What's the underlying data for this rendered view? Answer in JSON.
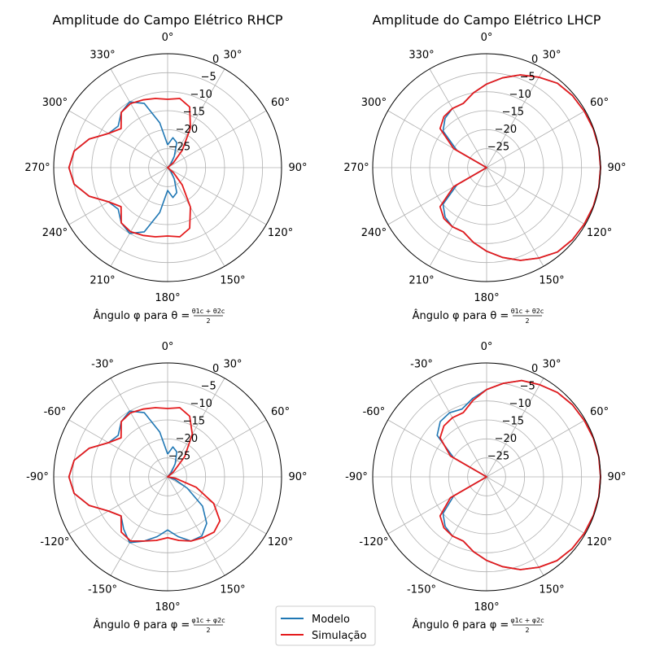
{
  "chart_data": [
    {
      "type": "polar-line",
      "title": "Amplitude do Campo Elétrico RHCP",
      "xlabel": {
        "prefix": "Ângulo φ para θ =",
        "num": "θ1c + θ2c",
        "den": "2"
      },
      "angle_tick_labels": [
        "0°",
        "30°",
        "60°",
        "90°",
        "120°",
        "150°",
        "180°",
        "210°",
        "240°",
        "270°",
        "300°",
        "330°"
      ],
      "radial_tick_labels": [
        "0",
        "−5",
        "−10",
        "−15",
        "−20",
        "−25"
      ],
      "radial_ticks": [
        0,
        -5,
        -10,
        -15,
        -20,
        -25
      ],
      "rlim": [
        -30,
        0
      ],
      "grid": true,
      "series": [
        {
          "name": "Modelo",
          "color": "#1f77b4",
          "theta": [
            0,
            10,
            20,
            30,
            40,
            50,
            60,
            70,
            80,
            90,
            100,
            110,
            120,
            130,
            140,
            150,
            160,
            170,
            180,
            190,
            200,
            210,
            220,
            230,
            240,
            250,
            260,
            270,
            280,
            290,
            300,
            310,
            320,
            330,
            340,
            350,
            360
          ],
          "values": [
            -24,
            -22,
            -23,
            -26.5,
            -28.5,
            -29.5,
            -30,
            -30,
            -30,
            -30,
            -30,
            -30,
            -30,
            -29.5,
            -28.5,
            -26.5,
            -23,
            -22,
            -24,
            -18,
            -12,
            -10,
            -11,
            -13,
            -12,
            -8,
            -5,
            -4,
            -5,
            -8,
            -12,
            -13,
            -11,
            -10,
            -12,
            -18,
            -24
          ]
        },
        {
          "name": "Simulação",
          "color": "#e41a1c",
          "theta": [
            0,
            10,
            20,
            30,
            40,
            50,
            60,
            70,
            80,
            90,
            100,
            110,
            120,
            130,
            140,
            150,
            160,
            170,
            180,
            190,
            200,
            210,
            220,
            230,
            240,
            250,
            260,
            270,
            280,
            290,
            300,
            310,
            320,
            330,
            340,
            350,
            360
          ],
          "values": [
            -12,
            -11.5,
            -13,
            -18,
            -24,
            -28,
            -30,
            -30,
            -30,
            -30,
            -30,
            -30,
            -30,
            -28,
            -24,
            -18,
            -13,
            -11.5,
            -12,
            -11.5,
            -11,
            -10.5,
            -11,
            -14,
            -12,
            -8,
            -5,
            -4,
            -5,
            -8,
            -12,
            -14,
            -11,
            -10.5,
            -11,
            -11.5,
            -12
          ]
        }
      ]
    },
    {
      "type": "polar-line",
      "title": "Amplitude do Campo Elétrico LHCP",
      "xlabel": {
        "prefix": "Ângulo φ para θ =",
        "num": "θ1c + θ2c",
        "den": "2"
      },
      "angle_tick_labels": [
        "0°",
        "30°",
        "60°",
        "90°",
        "120°",
        "150°",
        "180°",
        "210°",
        "240°",
        "270°",
        "300°",
        "330°"
      ],
      "radial_tick_labels": [
        "0",
        "−5",
        "−10",
        "−15",
        "−20",
        "−25"
      ],
      "radial_ticks": [
        0,
        -5,
        -10,
        -15,
        -20,
        -25
      ],
      "rlim": [
        -30,
        0
      ],
      "grid": true,
      "series": [
        {
          "name": "Modelo",
          "color": "#1f77b4",
          "theta": [
            0,
            10,
            20,
            30,
            40,
            50,
            60,
            70,
            80,
            90,
            100,
            110,
            120,
            130,
            140,
            150,
            160,
            170,
            180,
            190,
            200,
            210,
            220,
            230,
            240,
            250,
            260,
            270,
            280,
            290,
            300,
            310,
            320,
            330,
            340,
            350,
            360
          ],
          "values": [
            -8,
            -6,
            -4,
            -2.5,
            -1,
            -0.5,
            -0.3,
            -0.1,
            0,
            0,
            0,
            -0.1,
            -0.3,
            -0.5,
            -1,
            -2.5,
            -4,
            -6,
            -8,
            -10,
            -12,
            -12,
            -13,
            -15,
            -21,
            -30,
            -30,
            -30,
            -30,
            -30,
            -21,
            -15,
            -13,
            -12,
            -12,
            -10,
            -8
          ]
        },
        {
          "name": "Simulação",
          "color": "#e41a1c",
          "theta": [
            0,
            10,
            20,
            30,
            40,
            50,
            60,
            70,
            80,
            90,
            100,
            110,
            120,
            130,
            140,
            150,
            160,
            170,
            180,
            190,
            200,
            210,
            220,
            230,
            240,
            250,
            260,
            270,
            280,
            290,
            300,
            310,
            320,
            330,
            340,
            350,
            360
          ],
          "values": [
            -8,
            -6,
            -4,
            -2.5,
            -1,
            -0.5,
            -0.3,
            -0.1,
            0,
            0,
            0,
            -0.1,
            -0.3,
            -0.5,
            -1,
            -2.5,
            -4,
            -6,
            -8,
            -10,
            -12,
            -12,
            -12.5,
            -14,
            -20,
            -30,
            -30,
            -30,
            -30,
            -30,
            -20,
            -14,
            -12.5,
            -12,
            -12,
            -10,
            -8
          ]
        }
      ]
    },
    {
      "type": "polar-line",
      "title": "",
      "xlabel": {
        "prefix": "Ângulo θ para φ =",
        "num": "φ1c + φ2c",
        "den": "2"
      },
      "angle_tick_labels": [
        "0°",
        "30°",
        "60°",
        "90°",
        "120°",
        "150°",
        "180°",
        "-150°",
        "-120°",
        "-90°",
        "-60°",
        "-30°"
      ],
      "radial_tick_labels": [
        "0",
        "−5",
        "−10",
        "−15",
        "−20",
        "−25"
      ],
      "radial_ticks": [
        0,
        -5,
        -10,
        -15,
        -20,
        -25
      ],
      "rlim": [
        -30,
        0
      ],
      "grid": true,
      "series": [
        {
          "name": "Modelo",
          "color": "#1f77b4",
          "theta": [
            0,
            10,
            20,
            30,
            40,
            50,
            60,
            70,
            80,
            90,
            100,
            110,
            120,
            130,
            140,
            150,
            160,
            170,
            180,
            190,
            200,
            210,
            220,
            230,
            240,
            250,
            260,
            270,
            280,
            290,
            300,
            310,
            320,
            330,
            340,
            350,
            360
          ],
          "values": [
            -24,
            -22,
            -23,
            -26,
            -28.5,
            -30,
            -30,
            -30,
            -30,
            -30,
            -30,
            -28,
            -24,
            -18,
            -14,
            -12,
            -12,
            -14,
            -16,
            -14,
            -12,
            -10,
            -12,
            -14,
            -12,
            -8,
            -5,
            -4,
            -5,
            -8,
            -12,
            -13,
            -11,
            -10,
            -12,
            -18,
            -24
          ]
        },
        {
          "name": "Simulação",
          "color": "#e41a1c",
          "theta": [
            0,
            10,
            20,
            30,
            40,
            50,
            60,
            70,
            80,
            90,
            100,
            110,
            120,
            130,
            140,
            150,
            160,
            170,
            180,
            190,
            200,
            210,
            220,
            230,
            240,
            250,
            260,
            270,
            280,
            290,
            300,
            310,
            320,
            330,
            340,
            350,
            360
          ],
          "values": [
            -12,
            -11.5,
            -13,
            -17,
            -23,
            -28,
            -30,
            -30,
            -30,
            -30,
            -28,
            -22,
            -16,
            -12,
            -11,
            -11.5,
            -12,
            -13,
            -14,
            -13,
            -12,
            -10.5,
            -11,
            -14,
            -12,
            -8,
            -5,
            -4,
            -5,
            -8,
            -12,
            -14,
            -11,
            -10.5,
            -11,
            -11.5,
            -12
          ]
        }
      ]
    },
    {
      "type": "polar-line",
      "title": "",
      "xlabel": {
        "prefix": "Ângulo θ para φ =",
        "num": "φ1c + φ2c",
        "den": "2"
      },
      "angle_tick_labels": [
        "0°",
        "30°",
        "60°",
        "90°",
        "120°",
        "150°",
        "180°",
        "-150°",
        "-120°",
        "-90°",
        "-60°",
        "-30°"
      ],
      "radial_tick_labels": [
        "0",
        "−5",
        "−10",
        "−15",
        "−20",
        "−25"
      ],
      "radial_ticks": [
        0,
        -5,
        -10,
        -15,
        -20,
        -25
      ],
      "rlim": [
        -30,
        0
      ],
      "grid": true,
      "series": [
        {
          "name": "Modelo",
          "color": "#1f77b4",
          "theta": [
            0,
            10,
            20,
            30,
            40,
            50,
            60,
            70,
            80,
            90,
            100,
            110,
            120,
            130,
            140,
            150,
            160,
            170,
            180,
            190,
            200,
            210,
            220,
            230,
            240,
            250,
            260,
            270,
            280,
            290,
            300,
            310,
            320,
            330,
            340,
            350,
            360
          ],
          "values": [
            -7,
            -5,
            -3,
            -2,
            -1,
            -0.5,
            -0.3,
            -0.1,
            0,
            0,
            0,
            -0.1,
            -0.3,
            -0.6,
            -1.2,
            -2.5,
            -4,
            -6,
            -8,
            -10,
            -12,
            -12,
            -13,
            -15,
            -20,
            -30,
            -30,
            -30,
            -30,
            -30,
            -20,
            -13,
            -11,
            -10.5,
            -11,
            -9,
            -7
          ]
        },
        {
          "name": "Simulação",
          "color": "#e41a1c",
          "theta": [
            0,
            10,
            20,
            30,
            40,
            50,
            60,
            70,
            80,
            90,
            100,
            110,
            120,
            130,
            140,
            150,
            160,
            170,
            180,
            190,
            200,
            210,
            220,
            230,
            240,
            250,
            260,
            270,
            280,
            290,
            300,
            310,
            320,
            330,
            340,
            350,
            360
          ],
          "values": [
            -7,
            -5,
            -3,
            -2,
            -1,
            -0.5,
            -0.3,
            -0.1,
            0,
            0,
            0,
            -0.1,
            -0.3,
            -0.6,
            -1.2,
            -2.5,
            -4,
            -6,
            -8,
            -10,
            -12,
            -12,
            -12.5,
            -14,
            -19,
            -30,
            -30,
            -30,
            -30,
            -30,
            -19,
            -14,
            -12.5,
            -12,
            -12,
            -9.5,
            -7
          ]
        }
      ]
    }
  ],
  "legend": {
    "placement": "bottom-center",
    "entries": [
      {
        "label": "Modelo",
        "color": "#1f77b4"
      },
      {
        "label": "Simulação",
        "color": "#e41a1c"
      }
    ]
  }
}
